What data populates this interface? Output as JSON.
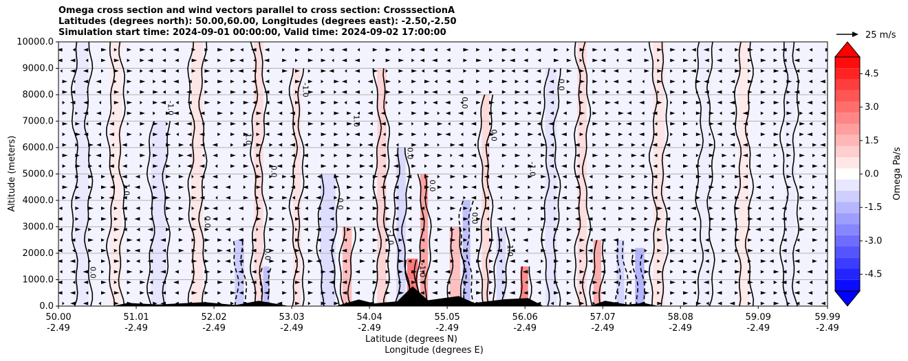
{
  "chart_data": {
    "type": "heatmap",
    "title_lines": [
      "Omega cross section and wind vectors parallel to cross section: CrosssectionA",
      "Latitudes (degrees north): 50.00,60.00, Longitudes (degrees east): -2.50,-2.50",
      "Simulation start time: 2024-09-01 00:00:00, Valid time: 2024-09-02 17:00:00"
    ],
    "xlabel_line1": "Latitude (degrees N)",
    "xlabel_line2": "Longitude (degrees E)",
    "ylabel": "Altitude (meters)",
    "y_range": [
      0,
      10000
    ],
    "y_ticks": [
      "0.0",
      "1000.0",
      "2000.0",
      "3000.0",
      "4000.0",
      "5000.0",
      "6000.0",
      "7000.0",
      "8000.0",
      "9000.0",
      "10000.0"
    ],
    "x_range": [
      50.0,
      59.99
    ],
    "x_tick_lat": [
      "50.00",
      "51.01",
      "52.02",
      "53.03",
      "54.04",
      "55.05",
      "56.06",
      "57.07",
      "58.08",
      "59.09",
      "59.99"
    ],
    "x_tick_lon": [
      "-2.49",
      "-2.49",
      "-2.49",
      "-2.49",
      "-2.49",
      "-2.49",
      "-2.49",
      "-2.49",
      "-2.49",
      "-2.49",
      "-2.49"
    ],
    "grid": "horizontal",
    "colorbar": {
      "label": "Omega Pa/s",
      "range": [
        -5.25,
        5.25
      ],
      "ticks": [
        "-4.5",
        "-3.0",
        "-1.5",
        "0.0",
        "1.5",
        "3.0",
        "4.5"
      ],
      "extend": "both",
      "cmap": "bwr"
    },
    "quiver_key_label": "25 m/s",
    "contour_levels": [
      -1.0,
      0.0,
      1.0
    ],
    "contour_labels": [
      "0.0",
      "1.0",
      "-1.0",
      "0.0",
      "1.0",
      "0.0",
      "0.0",
      "-1.0",
      "0.0",
      "1.0",
      "-1.0",
      "0.0",
      "-1.0",
      "0.0",
      "0.0",
      "0.0",
      "0.0",
      "1.0",
      "-1.0",
      "0.0"
    ],
    "omega_columns": [
      {
        "lat": 50.3,
        "width": 0.18,
        "value": -0.5,
        "top": 10000
      },
      {
        "lat": 50.75,
        "width": 0.15,
        "value": 0.5,
        "top": 10000
      },
      {
        "lat": 51.3,
        "width": 0.2,
        "value": -0.6,
        "top": 7000
      },
      {
        "lat": 51.8,
        "width": 0.15,
        "value": 0.6,
        "top": 10000
      },
      {
        "lat": 52.35,
        "width": 0.12,
        "value": -1.2,
        "top": 2500
      },
      {
        "lat": 52.6,
        "width": 0.12,
        "value": 0.8,
        "top": 10000
      },
      {
        "lat": 52.7,
        "width": 0.08,
        "value": -1.5,
        "top": 1500
      },
      {
        "lat": 53.1,
        "width": 0.1,
        "value": 0.7,
        "top": 9000
      },
      {
        "lat": 53.5,
        "width": 0.2,
        "value": -0.8,
        "top": 5000
      },
      {
        "lat": 53.75,
        "width": 0.12,
        "value": 1.6,
        "top": 3000
      },
      {
        "lat": 54.2,
        "width": 0.12,
        "value": 1.0,
        "top": 9000
      },
      {
        "lat": 54.45,
        "width": 0.12,
        "value": -0.9,
        "top": 6000
      },
      {
        "lat": 54.6,
        "width": 0.14,
        "value": 3.2,
        "top": 1800
      },
      {
        "lat": 54.75,
        "width": 0.1,
        "value": 2.2,
        "top": 5000
      },
      {
        "lat": 55.15,
        "width": 0.14,
        "value": 1.5,
        "top": 3000
      },
      {
        "lat": 55.3,
        "width": 0.1,
        "value": -1.5,
        "top": 4000
      },
      {
        "lat": 55.55,
        "width": 0.1,
        "value": 0.9,
        "top": 8000
      },
      {
        "lat": 55.75,
        "width": 0.12,
        "value": -0.8,
        "top": 3000
      },
      {
        "lat": 56.05,
        "width": 0.1,
        "value": 2.8,
        "top": 1500
      },
      {
        "lat": 56.4,
        "width": 0.15,
        "value": -0.6,
        "top": 9000
      },
      {
        "lat": 56.8,
        "width": 0.12,
        "value": 0.8,
        "top": 10000
      },
      {
        "lat": 57.0,
        "width": 0.1,
        "value": 2.0,
        "top": 2500
      },
      {
        "lat": 57.3,
        "width": 0.1,
        "value": -1.0,
        "top": 2500
      },
      {
        "lat": 57.55,
        "width": 0.12,
        "value": -1.8,
        "top": 2200
      },
      {
        "lat": 57.8,
        "width": 0.15,
        "value": 0.6,
        "top": 10000
      },
      {
        "lat": 58.4,
        "width": 0.15,
        "value": -0.4,
        "top": 10000
      },
      {
        "lat": 58.9,
        "width": 0.15,
        "value": 0.5,
        "top": 10000
      },
      {
        "lat": 59.5,
        "width": 0.15,
        "value": -0.4,
        "top": 10000
      }
    ],
    "terrain": [
      {
        "lat": 50.0,
        "alt": 0
      },
      {
        "lat": 50.7,
        "alt": 0
      },
      {
        "lat": 50.9,
        "alt": 120
      },
      {
        "lat": 51.3,
        "alt": 60
      },
      {
        "lat": 51.9,
        "alt": 150
      },
      {
        "lat": 52.3,
        "alt": 40
      },
      {
        "lat": 52.6,
        "alt": 200
      },
      {
        "lat": 53.0,
        "alt": 0
      },
      {
        "lat": 53.6,
        "alt": 0
      },
      {
        "lat": 53.9,
        "alt": 250
      },
      {
        "lat": 54.1,
        "alt": 100
      },
      {
        "lat": 54.4,
        "alt": 180
      },
      {
        "lat": 54.6,
        "alt": 750
      },
      {
        "lat": 54.8,
        "alt": 220
      },
      {
        "lat": 55.2,
        "alt": 380
      },
      {
        "lat": 55.4,
        "alt": 120
      },
      {
        "lat": 55.8,
        "alt": 260
      },
      {
        "lat": 56.1,
        "alt": 300
      },
      {
        "lat": 56.3,
        "alt": 0
      },
      {
        "lat": 56.9,
        "alt": 0
      },
      {
        "lat": 57.1,
        "alt": 200
      },
      {
        "lat": 57.4,
        "alt": 60
      },
      {
        "lat": 57.6,
        "alt": 120
      },
      {
        "lat": 57.8,
        "alt": 0
      },
      {
        "lat": 59.99,
        "alt": 0
      }
    ]
  }
}
